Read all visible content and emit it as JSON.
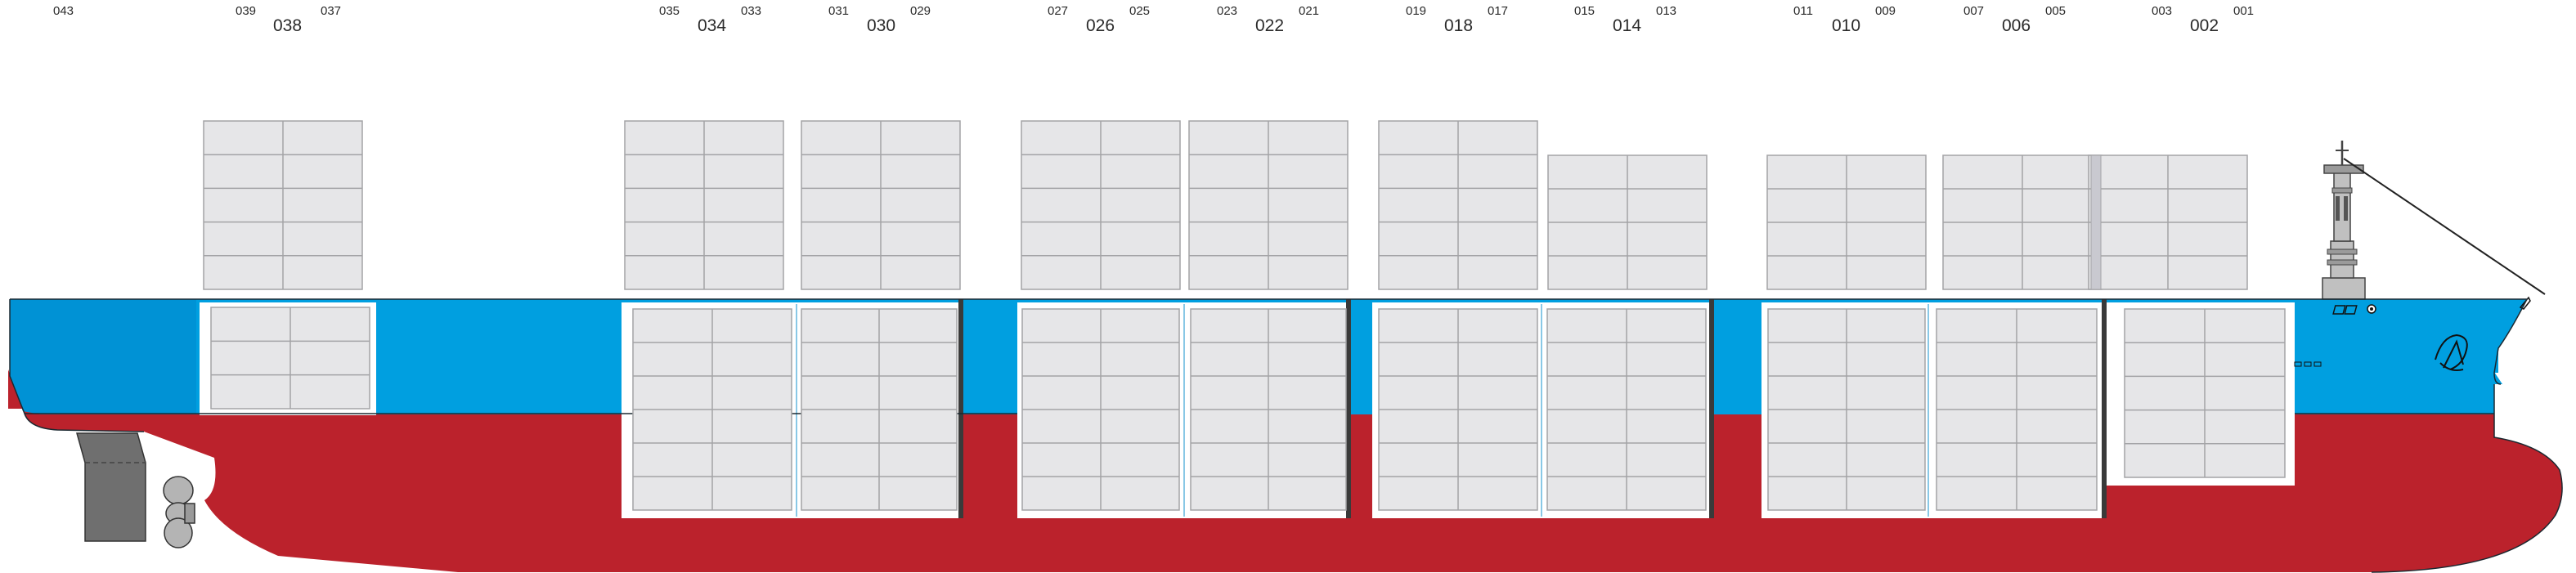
{
  "colors": {
    "hull_bottom": "#bb222c",
    "hull_top": "#009fe0",
    "hull_top_dark": "#0087cc",
    "container_fill": "#e6e6e8",
    "container_stroke": "#a3a3a6",
    "rudder": "#6f6f6f",
    "propeller": "#b4b4b4",
    "bridge": "#c0c0c0"
  },
  "bays": [
    {
      "name": "038",
      "left": "039",
      "right": "037"
    },
    {
      "name": "034",
      "left": "035",
      "right": "033"
    },
    {
      "name": "030",
      "left": "031",
      "right": "029"
    },
    {
      "name": "026",
      "left": "027",
      "right": "025"
    },
    {
      "name": "022",
      "left": "023",
      "right": "021"
    },
    {
      "name": "018",
      "left": "019",
      "right": "017"
    },
    {
      "name": "014",
      "left": "015",
      "right": "013"
    },
    {
      "name": "010",
      "left": "011",
      "right": "009"
    },
    {
      "name": "006",
      "left": "007",
      "right": "005"
    },
    {
      "name": "002",
      "left": "003",
      "right": "001"
    }
  ],
  "stern_label": "043"
}
